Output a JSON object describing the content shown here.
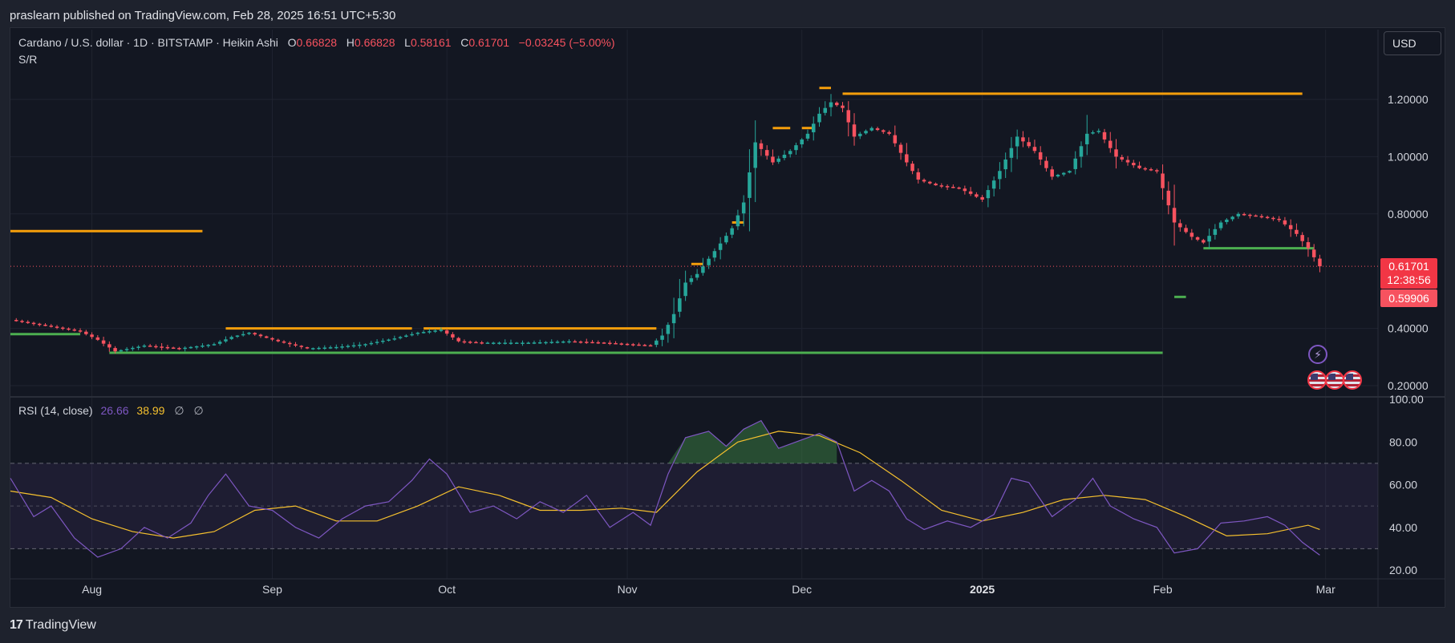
{
  "publish_line": "praslearn published on TradingView.com, Feb 28, 2025 16:51 UTC+5:30",
  "legend": {
    "symbol": "Cardano / U.S. dollar · 1D · BITSTAMP · Heikin Ashi",
    "o_label": "O",
    "o_value": "0.66828",
    "h_label": "H",
    "h_value": "0.66828",
    "l_label": "L",
    "l_value": "0.58161",
    "c_label": "C",
    "c_value": "0.61701",
    "change": "−0.03245 (−5.00%)",
    "indicator": "S/R"
  },
  "currency_button": "USD",
  "price_tag": {
    "price": "0.61701",
    "countdown": "12:38:56",
    "second": "0.59906"
  },
  "rsi_legend": {
    "label": "RSI (14, close)",
    "rsi_value": "26.66",
    "ma_value": "38.99",
    "flag1": "∅",
    "flag2": "∅"
  },
  "brand": {
    "logo": "17",
    "name": "TradingView"
  },
  "icons": {
    "lightning": "lightning-icon",
    "events": [
      "us-flag-icon",
      "us-flag-icon",
      "us-flag-icon"
    ]
  },
  "colors": {
    "up": "#26a69a",
    "down": "#f7525f",
    "resistance": "#f59e0b",
    "support": "#4caf50",
    "rsi": "#7e57c2",
    "rsi_ma": "#f5c02e",
    "background": "#131722"
  },
  "chart_data": [
    {
      "type": "candlestick",
      "subtype": "heikin_ashi",
      "title": "Cardano / U.S. dollar · 1D · BITSTAMP · Heikin Ashi",
      "x_range": [
        "2024-07-18",
        "2025-03-10"
      ],
      "x_ticks": [
        {
          "label": "Aug",
          "date": "2024-08-01",
          "bold": false
        },
        {
          "label": "Sep",
          "date": "2024-09-01",
          "bold": false
        },
        {
          "label": "Oct",
          "date": "2024-10-01",
          "bold": false
        },
        {
          "label": "Nov",
          "date": "2024-11-01",
          "bold": false
        },
        {
          "label": "Dec",
          "date": "2024-12-01",
          "bold": false
        },
        {
          "label": "2025",
          "date": "2025-01-01",
          "bold": true
        },
        {
          "label": "Feb",
          "date": "2025-02-01",
          "bold": false
        },
        {
          "label": "Mar",
          "date": "2025-03-01",
          "bold": false
        }
      ],
      "ylim": [
        0.16,
        1.4
      ],
      "y_ticks": [
        "0.20000",
        "0.40000",
        "0.80000",
        "1.00000",
        "1.20000"
      ],
      "last_price": 0.61701,
      "close_path": [
        [
          "2024-07-18",
          0.43
        ],
        [
          "2024-07-24",
          0.41
        ],
        [
          "2024-07-30",
          0.39
        ],
        [
          "2024-08-02",
          0.36
        ],
        [
          "2024-08-05",
          0.32
        ],
        [
          "2024-08-10",
          0.34
        ],
        [
          "2024-08-16",
          0.33
        ],
        [
          "2024-08-22",
          0.345
        ],
        [
          "2024-08-25",
          0.37
        ],
        [
          "2024-08-28",
          0.385
        ],
        [
          "2024-09-02",
          0.355
        ],
        [
          "2024-09-07",
          0.33
        ],
        [
          "2024-09-12",
          0.335
        ],
        [
          "2024-09-17",
          0.345
        ],
        [
          "2024-09-22",
          0.365
        ],
        [
          "2024-09-26",
          0.385
        ],
        [
          "2024-09-30",
          0.395
        ],
        [
          "2024-10-03",
          0.355
        ],
        [
          "2024-10-07",
          0.35
        ],
        [
          "2024-10-15",
          0.35
        ],
        [
          "2024-10-22",
          0.355
        ],
        [
          "2024-10-28",
          0.35
        ],
        [
          "2024-11-01",
          0.345
        ],
        [
          "2024-11-05",
          0.34
        ],
        [
          "2024-11-07",
          0.375
        ],
        [
          "2024-11-09",
          0.45
        ],
        [
          "2024-11-11",
          0.56
        ],
        [
          "2024-11-13",
          0.59
        ],
        [
          "2024-11-16",
          0.67
        ],
        [
          "2024-11-19",
          0.75
        ],
        [
          "2024-11-21",
          0.84
        ],
        [
          "2024-11-23",
          1.05
        ],
        [
          "2024-11-26",
          0.98
        ],
        [
          "2024-11-29",
          1.02
        ],
        [
          "2024-12-02",
          1.08
        ],
        [
          "2024-12-04",
          1.15
        ],
        [
          "2024-12-06",
          1.19
        ],
        [
          "2024-12-08",
          1.17
        ],
        [
          "2024-12-10",
          1.07
        ],
        [
          "2024-12-13",
          1.1
        ],
        [
          "2024-12-16",
          1.08
        ],
        [
          "2024-12-19",
          0.98
        ],
        [
          "2024-12-21",
          0.92
        ],
        [
          "2024-12-24",
          0.9
        ],
        [
          "2024-12-28",
          0.89
        ],
        [
          "2025-01-01",
          0.85
        ],
        [
          "2025-01-04",
          0.95
        ],
        [
          "2025-01-07",
          1.07
        ],
        [
          "2025-01-10",
          1.02
        ],
        [
          "2025-01-13",
          0.93
        ],
        [
          "2025-01-16",
          0.95
        ],
        [
          "2025-01-19",
          1.08
        ],
        [
          "2025-01-21",
          1.09
        ],
        [
          "2025-01-24",
          1.0
        ],
        [
          "2025-01-28",
          0.96
        ],
        [
          "2025-01-31",
          0.95
        ],
        [
          "2025-02-03",
          0.77
        ],
        [
          "2025-02-06",
          0.72
        ],
        [
          "2025-02-08",
          0.7
        ],
        [
          "2025-02-11",
          0.77
        ],
        [
          "2025-02-14",
          0.8
        ],
        [
          "2025-02-18",
          0.79
        ],
        [
          "2025-02-21",
          0.78
        ],
        [
          "2025-02-24",
          0.73
        ],
        [
          "2025-02-26",
          0.68
        ],
        [
          "2025-02-28",
          0.617
        ]
      ],
      "resistance_lines": [
        {
          "from": "2024-07-18",
          "to": "2024-08-20",
          "price": 0.74
        },
        {
          "from": "2024-08-24",
          "to": "2024-09-25",
          "price": 0.4
        },
        {
          "from": "2024-09-27",
          "to": "2024-11-06",
          "price": 0.4
        },
        {
          "from": "2024-11-12",
          "to": "2024-11-14",
          "price": 0.625
        },
        {
          "from": "2024-11-19",
          "to": "2024-11-21",
          "price": 0.77
        },
        {
          "from": "2024-11-26",
          "to": "2024-11-29",
          "price": 1.1
        },
        {
          "from": "2024-12-01",
          "to": "2024-12-03",
          "price": 1.1
        },
        {
          "from": "2024-12-04",
          "to": "2024-12-06",
          "price": 1.24
        },
        {
          "from": "2024-12-08",
          "to": "2025-02-25",
          "price": 1.22
        }
      ],
      "support_lines": [
        {
          "from": "2024-07-18",
          "to": "2024-07-30",
          "price": 0.38
        },
        {
          "from": "2024-08-04",
          "to": "2025-02-01",
          "price": 0.315
        },
        {
          "from": "2025-02-03",
          "to": "2025-02-05",
          "price": 0.51
        },
        {
          "from": "2025-02-08",
          "to": "2025-02-27",
          "price": 0.68
        }
      ]
    },
    {
      "type": "line",
      "title": "RSI (14, close)",
      "ylim": [
        15,
        100
      ],
      "y_ticks": [
        "20.00",
        "40.00",
        "60.00",
        "80.00",
        "100.00"
      ],
      "band": [
        30,
        70
      ],
      "midline": 50,
      "series": [
        {
          "name": "RSI",
          "values": [
            [
              "2024-07-18",
              63
            ],
            [
              "2024-07-22",
              45
            ],
            [
              "2024-07-25",
              50
            ],
            [
              "2024-07-29",
              35
            ],
            [
              "2024-08-02",
              26
            ],
            [
              "2024-08-06",
              30
            ],
            [
              "2024-08-10",
              40
            ],
            [
              "2024-08-14",
              35
            ],
            [
              "2024-08-18",
              42
            ],
            [
              "2024-08-21",
              55
            ],
            [
              "2024-08-24",
              65
            ],
            [
              "2024-08-28",
              50
            ],
            [
              "2024-09-01",
              48
            ],
            [
              "2024-09-05",
              40
            ],
            [
              "2024-09-09",
              35
            ],
            [
              "2024-09-13",
              44
            ],
            [
              "2024-09-17",
              50
            ],
            [
              "2024-09-21",
              52
            ],
            [
              "2024-09-25",
              62
            ],
            [
              "2024-09-28",
              72
            ],
            [
              "2024-10-01",
              65
            ],
            [
              "2024-10-05",
              47
            ],
            [
              "2024-10-09",
              50
            ],
            [
              "2024-10-13",
              44
            ],
            [
              "2024-10-17",
              52
            ],
            [
              "2024-10-21",
              47
            ],
            [
              "2024-10-25",
              55
            ],
            [
              "2024-10-29",
              40
            ],
            [
              "2024-11-02",
              47
            ],
            [
              "2024-11-05",
              41
            ],
            [
              "2024-11-08",
              65
            ],
            [
              "2024-11-11",
              82
            ],
            [
              "2024-11-15",
              85
            ],
            [
              "2024-11-18",
              78
            ],
            [
              "2024-11-21",
              86
            ],
            [
              "2024-11-24",
              90
            ],
            [
              "2024-11-27",
              77
            ],
            [
              "2024-12-01",
              81
            ],
            [
              "2024-12-04",
              84
            ],
            [
              "2024-12-07",
              80
            ],
            [
              "2024-12-10",
              57
            ],
            [
              "2024-12-13",
              62
            ],
            [
              "2024-12-16",
              57
            ],
            [
              "2024-12-19",
              44
            ],
            [
              "2024-12-22",
              39
            ],
            [
              "2024-12-26",
              43
            ],
            [
              "2024-12-30",
              40
            ],
            [
              "2025-01-03",
              46
            ],
            [
              "2025-01-06",
              63
            ],
            [
              "2025-01-09",
              61
            ],
            [
              "2025-01-13",
              45
            ],
            [
              "2025-01-17",
              53
            ],
            [
              "2025-01-20",
              63
            ],
            [
              "2025-01-23",
              50
            ],
            [
              "2025-01-27",
              44
            ],
            [
              "2025-01-31",
              40
            ],
            [
              "2025-02-03",
              28
            ],
            [
              "2025-02-07",
              30
            ],
            [
              "2025-02-11",
              42
            ],
            [
              "2025-02-15",
              43
            ],
            [
              "2025-02-19",
              45
            ],
            [
              "2025-02-22",
              41
            ],
            [
              "2025-02-25",
              33
            ],
            [
              "2025-02-28",
              27
            ]
          ]
        },
        {
          "name": "RSI-based MA",
          "values": [
            [
              "2024-07-18",
              57
            ],
            [
              "2024-07-25",
              54
            ],
            [
              "2024-08-01",
              44
            ],
            [
              "2024-08-08",
              38
            ],
            [
              "2024-08-15",
              35
            ],
            [
              "2024-08-22",
              38
            ],
            [
              "2024-08-29",
              48
            ],
            [
              "2024-09-05",
              50
            ],
            [
              "2024-09-12",
              43
            ],
            [
              "2024-09-19",
              43
            ],
            [
              "2024-09-26",
              50
            ],
            [
              "2024-10-03",
              59
            ],
            [
              "2024-10-10",
              55
            ],
            [
              "2024-10-17",
              48
            ],
            [
              "2024-10-24",
              48
            ],
            [
              "2024-10-31",
              49
            ],
            [
              "2024-11-06",
              47
            ],
            [
              "2024-11-13",
              66
            ],
            [
              "2024-11-20",
              80
            ],
            [
              "2024-11-27",
              85
            ],
            [
              "2024-12-04",
              83
            ],
            [
              "2024-12-11",
              75
            ],
            [
              "2024-12-18",
              62
            ],
            [
              "2024-12-25",
              48
            ],
            [
              "2025-01-01",
              43
            ],
            [
              "2025-01-08",
              47
            ],
            [
              "2025-01-15",
              53
            ],
            [
              "2025-01-22",
              55
            ],
            [
              "2025-01-29",
              53
            ],
            [
              "2025-02-05",
              45
            ],
            [
              "2025-02-12",
              36
            ],
            [
              "2025-02-19",
              37
            ],
            [
              "2025-02-26",
              41
            ],
            [
              "2025-02-28",
              39
            ]
          ]
        }
      ]
    }
  ]
}
